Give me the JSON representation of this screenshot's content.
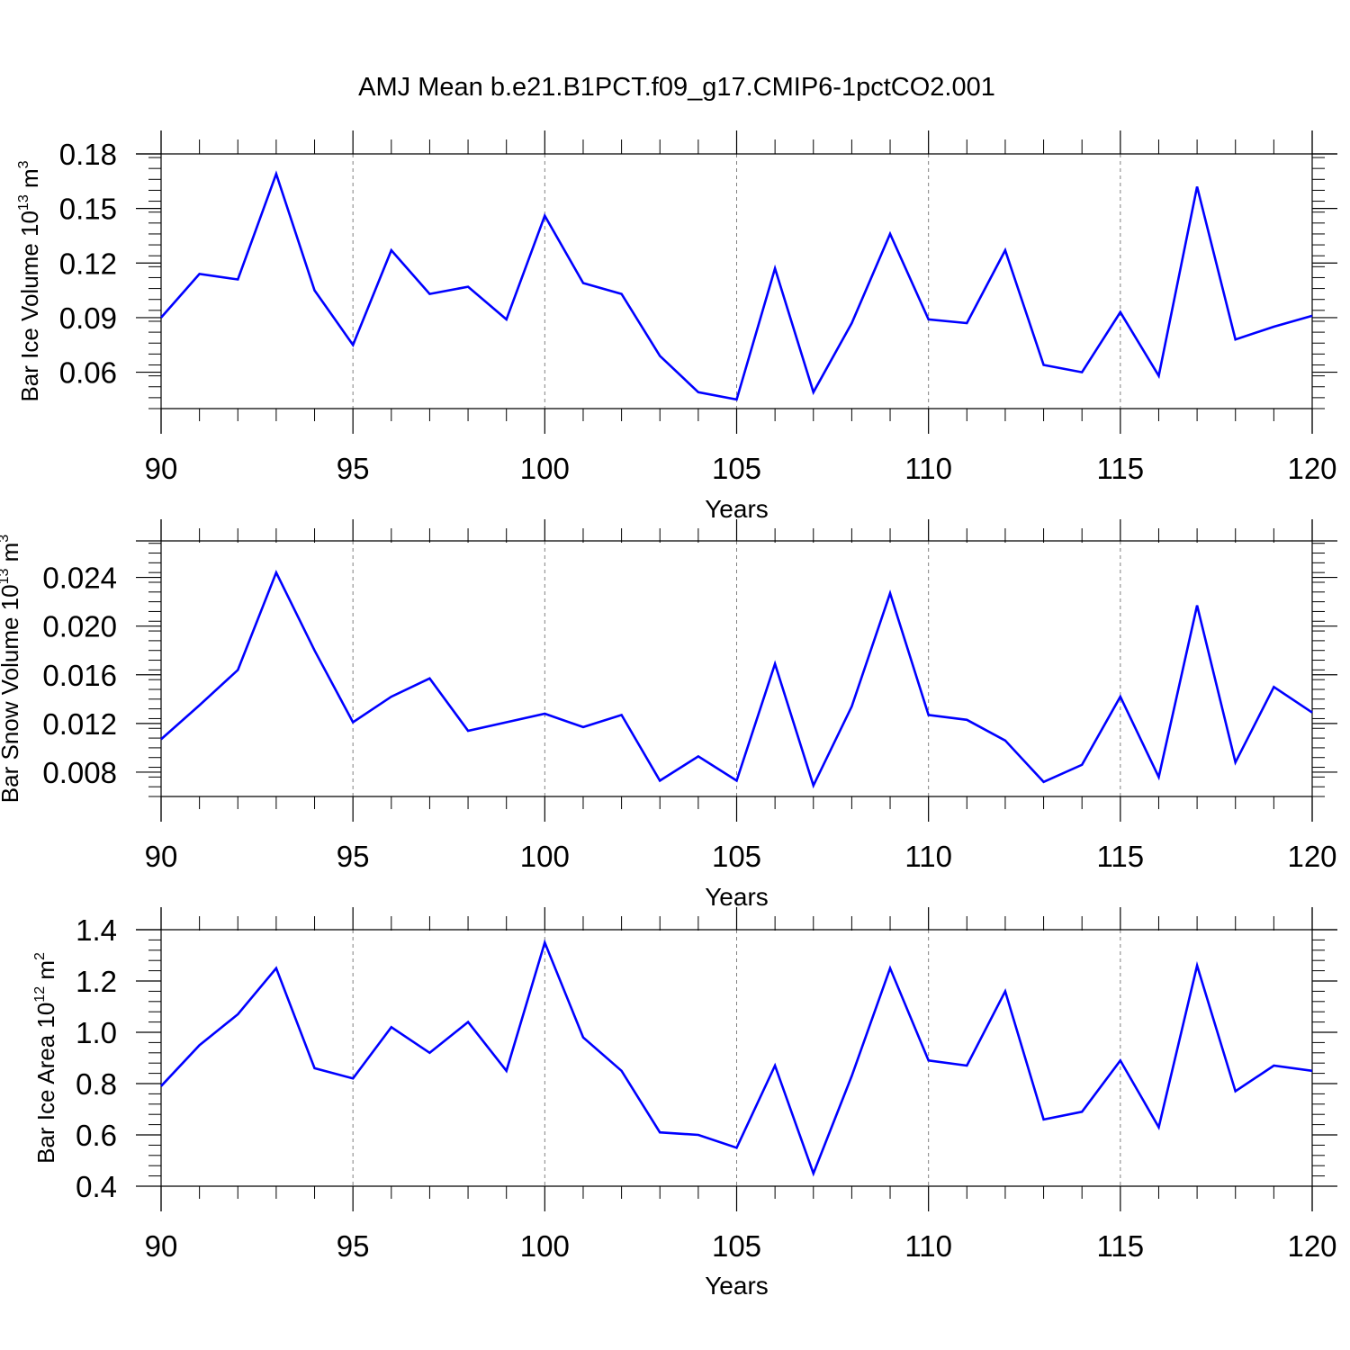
{
  "title": "AMJ Mean b.e21.B1PCT.f09_g17.CMIP6-1pctCO2.001",
  "colors": {
    "line": "#0000ff",
    "frame": "#000000",
    "grid": "#808080"
  },
  "chart_data": [
    {
      "type": "line",
      "ylabel": {
        "text": "Bar Ice Volume 10",
        "exp": "13",
        "unit": " m",
        "unit_exp": "3"
      },
      "xlabel": "Years",
      "xlim": [
        90,
        120
      ],
      "ylim": [
        0.04,
        0.18
      ],
      "xticks": [
        90,
        95,
        100,
        105,
        110,
        115,
        120
      ],
      "yticks": [
        "0.06",
        "0.09",
        "0.12",
        "0.15",
        "0.18"
      ],
      "x": [
        90,
        91,
        92,
        93,
        94,
        95,
        96,
        97,
        98,
        99,
        100,
        101,
        102,
        103,
        104,
        105,
        106,
        107,
        108,
        109,
        110,
        111,
        112,
        113,
        114,
        115,
        116,
        117,
        118,
        119,
        120
      ],
      "series": [
        {
          "values": [
            0.09,
            0.114,
            0.111,
            0.169,
            0.105,
            0.075,
            0.127,
            0.103,
            0.107,
            0.089,
            0.146,
            0.109,
            0.103,
            0.069,
            0.049,
            0.045,
            0.117,
            0.049,
            0.087,
            0.136,
            0.089,
            0.087,
            0.127,
            0.064,
            0.06,
            0.093,
            0.058,
            0.162,
            0.078,
            0.085,
            0.091
          ]
        }
      ]
    },
    {
      "type": "line",
      "ylabel": {
        "text": "Bar Snow Volume 10",
        "exp": "13",
        "unit": " m",
        "unit_exp": "3"
      },
      "xlabel": "Years",
      "xlim": [
        90,
        120
      ],
      "ylim": [
        0.006,
        0.027
      ],
      "xticks": [
        90,
        95,
        100,
        105,
        110,
        115,
        120
      ],
      "yticks": [
        "0.008",
        "0.012",
        "0.016",
        "0.020",
        "0.024"
      ],
      "x": [
        90,
        91,
        92,
        93,
        94,
        95,
        96,
        97,
        98,
        99,
        100,
        101,
        102,
        103,
        104,
        105,
        106,
        107,
        108,
        109,
        110,
        111,
        112,
        113,
        114,
        115,
        116,
        117,
        118,
        119,
        120
      ],
      "series": [
        {
          "values": [
            0.0107,
            0.0135,
            0.0164,
            0.0244,
            0.018,
            0.0121,
            0.0142,
            0.0157,
            0.0114,
            0.0121,
            0.0128,
            0.0117,
            0.0127,
            0.0073,
            0.0093,
            0.0073,
            0.0169,
            0.0069,
            0.0134,
            0.0227,
            0.0127,
            0.0123,
            0.0106,
            0.0072,
            0.0086,
            0.0142,
            0.0076,
            0.0217,
            0.0088,
            0.015,
            0.0129
          ]
        }
      ]
    },
    {
      "type": "line",
      "ylabel": {
        "text": "Bar Ice Area 10",
        "exp": "12",
        "unit": " m",
        "unit_exp": "2"
      },
      "xlabel": "Years",
      "xlim": [
        90,
        120
      ],
      "ylim": [
        0.4,
        1.4
      ],
      "xticks": [
        90,
        95,
        100,
        105,
        110,
        115,
        120
      ],
      "yticks": [
        "0.4",
        "0.6",
        "0.8",
        "1.0",
        "1.2",
        "1.4"
      ],
      "x": [
        90,
        91,
        92,
        93,
        94,
        95,
        96,
        97,
        98,
        99,
        100,
        101,
        102,
        103,
        104,
        105,
        106,
        107,
        108,
        109,
        110,
        111,
        112,
        113,
        114,
        115,
        116,
        117,
        118,
        119,
        120
      ],
      "series": [
        {
          "values": [
            0.79,
            0.95,
            1.07,
            1.25,
            0.86,
            0.82,
            1.02,
            0.92,
            1.04,
            0.85,
            1.35,
            0.98,
            0.85,
            0.61,
            0.6,
            0.55,
            0.87,
            0.45,
            0.83,
            1.25,
            0.89,
            0.87,
            1.16,
            0.66,
            0.69,
            0.89,
            0.63,
            1.26,
            0.77,
            0.87,
            0.85
          ]
        }
      ]
    }
  ]
}
